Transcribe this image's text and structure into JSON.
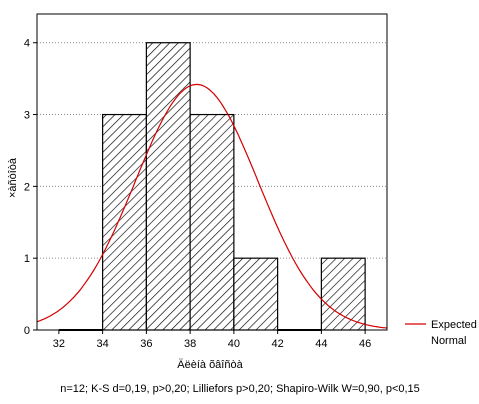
{
  "chart_data": {
    "type": "bar",
    "subtype": "histogram",
    "xlabel": "Äëèíà õâîñòà",
    "ylabel": "×àñòîòà",
    "xlim": [
      31,
      47
    ],
    "ylim": [
      0,
      4.4
    ],
    "x_ticks": [
      32,
      34,
      36,
      38,
      40,
      42,
      44,
      46
    ],
    "y_ticks": [
      0,
      1,
      2,
      3,
      4
    ],
    "grid": "horizontal-dotted",
    "bin_width": 2,
    "bins": [
      {
        "start": 32,
        "end": 34,
        "count": 0
      },
      {
        "start": 34,
        "end": 36,
        "count": 3
      },
      {
        "start": 36,
        "end": 38,
        "count": 4
      },
      {
        "start": 38,
        "end": 40,
        "count": 3
      },
      {
        "start": 40,
        "end": 42,
        "count": 1
      },
      {
        "start": 42,
        "end": 44,
        "count": 0
      },
      {
        "start": 44,
        "end": 46,
        "count": 1
      }
    ],
    "expected_normal": {
      "name": "Expected Normal",
      "n": 12,
      "mean": 38.3,
      "sd": 2.8,
      "color": "#d40000"
    },
    "legend": {
      "placement": "bottom-right",
      "lines": [
        "Expected",
        "Normal"
      ]
    },
    "bar_fill": "diagonal-hatch",
    "stats_note": "n=12; K-S d=0,19, p>0,20; Lilliefors p>0,20; Shapiro-Wilk W=0,90, p<0,15"
  }
}
